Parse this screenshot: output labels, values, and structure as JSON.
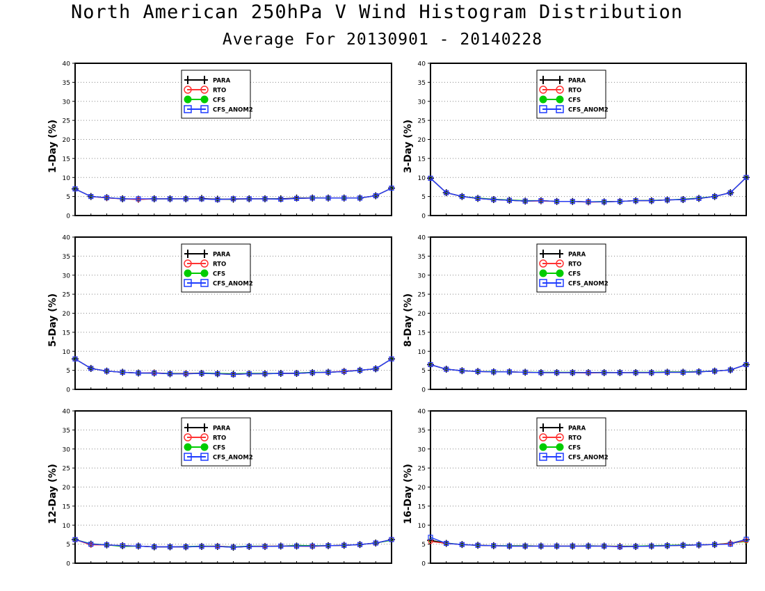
{
  "figure": {
    "title": "North American 250hPa V Wind Histogram Distribution",
    "subtitle": "Average For 20130901 - 20140228"
  },
  "colors": {
    "PARA": "#000000",
    "RTO": "#ff3333",
    "CFS": "#00cc00",
    "CFS_ANOM2": "#1e3cff",
    "grid": "#888888"
  },
  "chart_data": [
    {
      "type": "line",
      "ylabel": "1-Day (%)",
      "ylim": [
        0,
        40
      ],
      "yticks": [
        0,
        5,
        10,
        15,
        20,
        25,
        30,
        35,
        40
      ],
      "grid": true,
      "legend_position": "top-center",
      "x": [
        1,
        2,
        3,
        4,
        5,
        6,
        7,
        8,
        9,
        10,
        11,
        12,
        13,
        14,
        15,
        16,
        17,
        18,
        19,
        20,
        21
      ],
      "series": [
        {
          "name": "PARA",
          "values": [
            7.0,
            5.0,
            4.7,
            4.4,
            4.3,
            4.4,
            4.4,
            4.4,
            4.5,
            4.3,
            4.3,
            4.4,
            4.4,
            4.4,
            4.6,
            4.6,
            4.6,
            4.6,
            4.6,
            5.2,
            7.2
          ]
        },
        {
          "name": "RTO",
          "values": [
            7.0,
            5.0,
            4.6,
            4.4,
            4.2,
            4.4,
            4.4,
            4.4,
            4.4,
            4.2,
            4.4,
            4.4,
            4.4,
            4.3,
            4.5,
            4.6,
            4.6,
            4.6,
            4.6,
            5.2,
            7.2
          ]
        },
        {
          "name": "CFS",
          "values": [
            7.0,
            5.0,
            4.7,
            4.4,
            4.3,
            4.4,
            4.4,
            4.4,
            4.4,
            4.3,
            4.3,
            4.4,
            4.4,
            4.4,
            4.5,
            4.7,
            4.6,
            4.6,
            4.6,
            5.2,
            7.2
          ]
        },
        {
          "name": "CFS_ANOM2",
          "values": [
            7.0,
            5.0,
            4.7,
            4.4,
            4.4,
            4.4,
            4.4,
            4.4,
            4.4,
            4.2,
            4.4,
            4.4,
            4.4,
            4.3,
            4.5,
            4.6,
            4.6,
            4.6,
            4.6,
            5.2,
            7.2
          ]
        }
      ]
    },
    {
      "type": "line",
      "ylabel": "3-Day (%)",
      "ylim": [
        0,
        40
      ],
      "yticks": [
        0,
        5,
        10,
        15,
        20,
        25,
        30,
        35,
        40
      ],
      "grid": true,
      "legend_position": "top-center",
      "x": [
        1,
        2,
        3,
        4,
        5,
        6,
        7,
        8,
        9,
        10,
        11,
        12,
        13,
        14,
        15,
        16,
        17,
        18,
        19,
        20,
        21
      ],
      "series": [
        {
          "name": "PARA",
          "values": [
            9.8,
            6.0,
            5.0,
            4.5,
            4.2,
            4.0,
            3.8,
            3.9,
            3.7,
            3.7,
            3.6,
            3.6,
            3.7,
            3.9,
            3.9,
            4.1,
            4.2,
            4.5,
            5.0,
            6.0,
            10.0
          ]
        },
        {
          "name": "RTO",
          "values": [
            9.8,
            6.0,
            5.0,
            4.5,
            4.2,
            4.0,
            3.8,
            3.8,
            3.7,
            3.7,
            3.5,
            3.6,
            3.7,
            3.9,
            3.9,
            4.1,
            4.2,
            4.5,
            5.0,
            6.0,
            10.0
          ]
        },
        {
          "name": "CFS",
          "values": [
            9.8,
            6.0,
            5.0,
            4.6,
            4.3,
            4.1,
            3.9,
            3.9,
            3.7,
            3.7,
            3.6,
            3.7,
            3.7,
            3.9,
            4.0,
            4.1,
            4.3,
            4.6,
            5.0,
            6.0,
            10.0
          ]
        },
        {
          "name": "CFS_ANOM2",
          "values": [
            9.8,
            6.0,
            5.0,
            4.5,
            4.2,
            4.0,
            3.8,
            3.9,
            3.7,
            3.7,
            3.6,
            3.6,
            3.7,
            3.9,
            3.9,
            4.1,
            4.2,
            4.5,
            5.0,
            6.0,
            10.0
          ]
        }
      ]
    },
    {
      "type": "line",
      "ylabel": "5-Day (%)",
      "ylim": [
        0,
        40
      ],
      "yticks": [
        0,
        5,
        10,
        15,
        20,
        25,
        30,
        35,
        40
      ],
      "grid": true,
      "legend_position": "top-center",
      "x": [
        1,
        2,
        3,
        4,
        5,
        6,
        7,
        8,
        9,
        10,
        11,
        12,
        13,
        14,
        15,
        16,
        17,
        18,
        19,
        20,
        21
      ],
      "series": [
        {
          "name": "PARA",
          "values": [
            8.0,
            5.5,
            4.8,
            4.5,
            4.3,
            4.3,
            4.1,
            4.1,
            4.2,
            4.1,
            4.0,
            4.1,
            4.1,
            4.2,
            4.2,
            4.4,
            4.5,
            4.7,
            5.0,
            5.4,
            8.0
          ]
        },
        {
          "name": "RTO",
          "values": [
            8.0,
            5.5,
            4.8,
            4.5,
            4.3,
            4.4,
            4.1,
            4.2,
            4.2,
            4.1,
            3.9,
            4.1,
            4.1,
            4.2,
            4.2,
            4.4,
            4.5,
            4.8,
            5.0,
            5.4,
            8.0
          ]
        },
        {
          "name": "CFS",
          "values": [
            8.0,
            5.5,
            4.8,
            4.5,
            4.3,
            4.3,
            4.2,
            4.2,
            4.3,
            4.2,
            4.1,
            4.2,
            4.2,
            4.2,
            4.3,
            4.5,
            4.5,
            4.7,
            5.0,
            5.4,
            8.0
          ]
        },
        {
          "name": "CFS_ANOM2",
          "values": [
            8.0,
            5.5,
            4.8,
            4.5,
            4.3,
            4.3,
            4.1,
            4.1,
            4.2,
            4.1,
            3.9,
            4.1,
            4.1,
            4.2,
            4.2,
            4.4,
            4.5,
            4.7,
            5.0,
            5.4,
            8.0
          ]
        }
      ]
    },
    {
      "type": "line",
      "ylabel": "8-Day (%)",
      "ylim": [
        0,
        40
      ],
      "yticks": [
        0,
        5,
        10,
        15,
        20,
        25,
        30,
        35,
        40
      ],
      "grid": true,
      "legend_position": "top-center",
      "x": [
        1,
        2,
        3,
        4,
        5,
        6,
        7,
        8,
        9,
        10,
        11,
        12,
        13,
        14,
        15,
        16,
        17,
        18,
        19,
        20,
        21
      ],
      "series": [
        {
          "name": "PARA",
          "values": [
            6.5,
            5.3,
            4.9,
            4.7,
            4.6,
            4.6,
            4.5,
            4.4,
            4.4,
            4.4,
            4.4,
            4.4,
            4.4,
            4.4,
            4.4,
            4.5,
            4.5,
            4.6,
            4.8,
            5.1,
            6.5
          ]
        },
        {
          "name": "RTO",
          "values": [
            6.5,
            5.3,
            4.9,
            4.7,
            4.6,
            4.6,
            4.5,
            4.4,
            4.4,
            4.4,
            4.3,
            4.4,
            4.4,
            4.4,
            4.4,
            4.5,
            4.5,
            4.6,
            4.8,
            5.1,
            6.5
          ]
        },
        {
          "name": "CFS",
          "values": [
            6.5,
            5.3,
            4.9,
            4.7,
            4.7,
            4.6,
            4.5,
            4.5,
            4.5,
            4.5,
            4.4,
            4.5,
            4.4,
            4.5,
            4.5,
            4.6,
            4.6,
            4.7,
            4.8,
            5.1,
            6.5
          ]
        },
        {
          "name": "CFS_ANOM2",
          "values": [
            6.5,
            5.3,
            4.9,
            4.7,
            4.6,
            4.6,
            4.5,
            4.4,
            4.4,
            4.4,
            4.4,
            4.4,
            4.4,
            4.4,
            4.4,
            4.5,
            4.5,
            4.6,
            4.8,
            5.1,
            6.5
          ]
        }
      ]
    },
    {
      "type": "line",
      "ylabel": "12-Day (%)",
      "ylim": [
        0,
        40
      ],
      "yticks": [
        0,
        5,
        10,
        15,
        20,
        25,
        30,
        35,
        40
      ],
      "grid": true,
      "legend_position": "top-center",
      "x": [
        1,
        2,
        3,
        4,
        5,
        6,
        7,
        8,
        9,
        10,
        11,
        12,
        13,
        14,
        15,
        16,
        17,
        18,
        19,
        20,
        21
      ],
      "series": [
        {
          "name": "PARA",
          "values": [
            6.2,
            5.0,
            4.8,
            4.6,
            4.5,
            4.3,
            4.3,
            4.3,
            4.4,
            4.4,
            4.2,
            4.4,
            4.4,
            4.5,
            4.5,
            4.5,
            4.6,
            4.7,
            4.9,
            5.3,
            6.2
          ]
        },
        {
          "name": "RTO",
          "values": [
            6.2,
            4.8,
            4.8,
            4.6,
            4.5,
            4.3,
            4.3,
            4.3,
            4.4,
            4.5,
            4.2,
            4.4,
            4.5,
            4.5,
            4.5,
            4.4,
            4.6,
            4.7,
            4.9,
            5.3,
            6.2
          ]
        },
        {
          "name": "CFS",
          "values": [
            6.2,
            5.1,
            4.8,
            4.4,
            4.5,
            4.3,
            4.3,
            4.4,
            4.5,
            4.5,
            4.3,
            4.5,
            4.5,
            4.5,
            4.7,
            4.6,
            4.6,
            4.7,
            4.9,
            5.3,
            6.0
          ]
        },
        {
          "name": "CFS_ANOM2",
          "values": [
            6.2,
            5.0,
            4.8,
            4.6,
            4.5,
            4.3,
            4.3,
            4.3,
            4.4,
            4.4,
            4.2,
            4.4,
            4.4,
            4.5,
            4.5,
            4.5,
            4.6,
            4.7,
            4.9,
            5.3,
            6.2
          ]
        }
      ]
    },
    {
      "type": "line",
      "ylabel": "16-Day (%)",
      "ylim": [
        0,
        40
      ],
      "yticks": [
        0,
        5,
        10,
        15,
        20,
        25,
        30,
        35,
        40
      ],
      "grid": true,
      "legend_position": "top-center",
      "x": [
        1,
        2,
        3,
        4,
        5,
        6,
        7,
        8,
        9,
        10,
        11,
        12,
        13,
        14,
        15,
        16,
        17,
        18,
        19,
        20,
        21
      ],
      "series": [
        {
          "name": "PARA",
          "values": [
            6.0,
            5.2,
            4.9,
            4.7,
            4.6,
            4.5,
            4.5,
            4.5,
            4.5,
            4.5,
            4.5,
            4.5,
            4.4,
            4.4,
            4.5,
            4.6,
            4.7,
            4.8,
            4.9,
            5.2,
            6.2
          ]
        },
        {
          "name": "RTO",
          "values": [
            5.7,
            5.2,
            4.9,
            4.7,
            4.6,
            4.5,
            4.5,
            4.5,
            4.5,
            4.5,
            4.5,
            4.5,
            4.4,
            4.4,
            4.5,
            4.6,
            4.7,
            4.8,
            4.9,
            5.2,
            5.9
          ]
        },
        {
          "name": "CFS",
          "values": [
            6.0,
            5.3,
            4.9,
            4.7,
            4.6,
            4.6,
            4.6,
            4.5,
            4.5,
            4.5,
            4.6,
            4.5,
            4.5,
            4.5,
            4.6,
            4.7,
            4.8,
            4.8,
            4.9,
            5.3,
            5.7
          ]
        },
        {
          "name": "CFS_ANOM2",
          "values": [
            6.8,
            5.2,
            4.9,
            4.7,
            4.6,
            4.5,
            4.5,
            4.5,
            4.5,
            4.5,
            4.5,
            4.5,
            4.3,
            4.4,
            4.5,
            4.6,
            4.7,
            4.8,
            4.9,
            5.0,
            6.3
          ]
        }
      ]
    }
  ]
}
